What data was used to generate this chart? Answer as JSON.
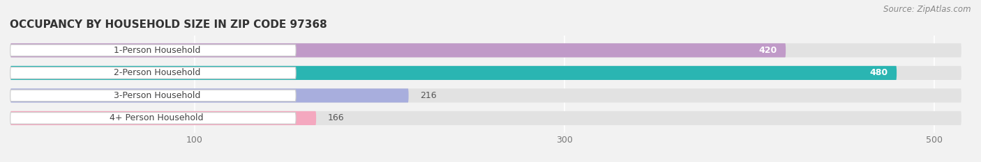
{
  "title": "OCCUPANCY BY HOUSEHOLD SIZE IN ZIP CODE 97368",
  "source": "Source: ZipAtlas.com",
  "categories": [
    "1-Person Household",
    "2-Person Household",
    "3-Person Household",
    "4+ Person Household"
  ],
  "values": [
    420,
    480,
    216,
    166
  ],
  "bar_colors": [
    "#c09ac8",
    "#2ab5b2",
    "#a8aedd",
    "#f4a8bf"
  ],
  "background_color": "#f2f2f2",
  "bar_background_color": "#e2e2e2",
  "label_bg_color": "#ffffff",
  "xlim": [
    0,
    520
  ],
  "xticks": [
    100,
    300,
    500
  ],
  "title_fontsize": 11,
  "label_fontsize": 9,
  "value_fontsize": 9,
  "source_fontsize": 8.5
}
